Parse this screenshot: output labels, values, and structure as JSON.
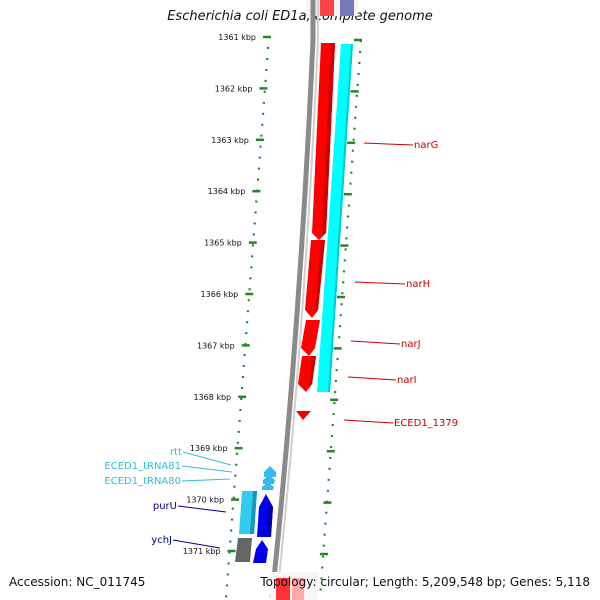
{
  "title": "Escherichia coli ED1a, complete genome",
  "footer": {
    "accession": "Accession: NC_011745",
    "topology": "Topology: circular; Length: 5,209,548 bp; Genes: 5,118"
  },
  "scale": {
    "unit": "kbp",
    "ticks": [
      {
        "label": "1361 kbp"
      },
      {
        "label": "1362 kbp"
      },
      {
        "label": "1363 kbp"
      },
      {
        "label": "1364 kbp"
      },
      {
        "label": "1365 kbp"
      },
      {
        "label": "1366 kbp"
      },
      {
        "label": "1367 kbp"
      },
      {
        "label": "1368 kbp"
      },
      {
        "label": "1369 kbp"
      },
      {
        "label": "1370 kbp"
      },
      {
        "label": "1371 kbp"
      }
    ]
  },
  "genes": [
    {
      "name": "narG",
      "color": "#cc0000"
    },
    {
      "name": "narH",
      "color": "#cc0000"
    },
    {
      "name": "narJ",
      "color": "#cc0000"
    },
    {
      "name": "narI",
      "color": "#cc0000"
    },
    {
      "name": "ECED1_1379",
      "color": "#cc0000"
    },
    {
      "name": "rtt",
      "color": "#33bbdd"
    },
    {
      "name": "ECED1_tRNA81",
      "color": "#33bbdd"
    },
    {
      "name": "ECED1_tRNA80",
      "color": "#33bbdd"
    },
    {
      "name": "purU",
      "color": "#00008b"
    },
    {
      "name": "ychJ",
      "color": "#00008b"
    }
  ],
  "colors": {
    "cds_forward": "#ff0000",
    "cds_reverse": "#0000ee",
    "gc_plus": "#00ffff",
    "rna": "#33ccee",
    "backbone": "#888888",
    "ticks": "#007700"
  }
}
